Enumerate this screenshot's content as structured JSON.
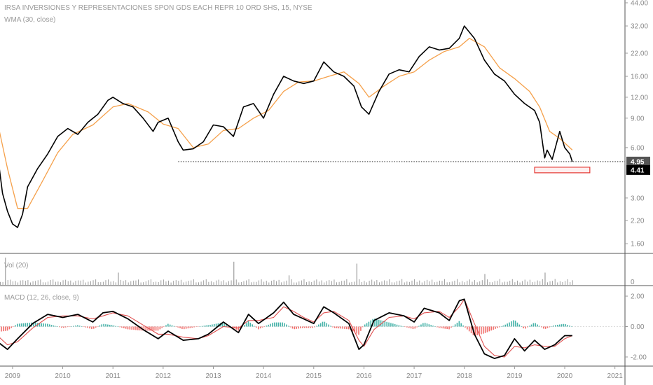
{
  "chart_data": {
    "type": "line",
    "title": "IRSA INVERSIONES Y REPRESENTACIONES SPON GDS EACH REPR 10 ORD SHS, 15, NYSE",
    "indicator_label": "WMA (30, close)",
    "volume_label": "Vol (20)",
    "macd_label": "MACD (12, 26, close, 9)",
    "y_scale": "log",
    "ylim": [
      1.4,
      44
    ],
    "y_ticks": [
      "44.00",
      "32.00",
      "22.00",
      "16.00",
      "12.00",
      "9.00",
      "6.00",
      "3.00",
      "2.20",
      "1.60"
    ],
    "volume_ticks": [
      "0"
    ],
    "macd_ticks": [
      "2.00",
      "0.00",
      "-2.00"
    ],
    "x_ticks": [
      "2009",
      "2010",
      "2011",
      "2012",
      "2013",
      "2014",
      "2015",
      "2016",
      "2017",
      "2018",
      "2019",
      "2020",
      "2021"
    ],
    "last_price": "4.95",
    "low_price": "4.41",
    "colors": {
      "price": "#000000",
      "wma": "#f5a04a",
      "macd": "#000000",
      "signal": "#e05050",
      "hist_up": "#26a69a",
      "hist_down": "#ef5350",
      "volume": "#9e9e9e",
      "highlight_box": "#e53935",
      "last_tag": "#555555",
      "low_tag": "#000000"
    },
    "series": [
      {
        "name": "close",
        "x": [
          2008.7,
          2008.8,
          2008.9,
          2009.0,
          2009.1,
          2009.2,
          2009.3,
          2009.5,
          2009.7,
          2009.9,
          2010.1,
          2010.3,
          2010.5,
          2010.7,
          2010.9,
          2011.0,
          2011.2,
          2011.4,
          2011.6,
          2011.8,
          2011.9,
          2012.1,
          2012.3,
          2012.4,
          2012.6,
          2012.8,
          2013.0,
          2013.2,
          2013.4,
          2013.6,
          2013.8,
          2014.0,
          2014.2,
          2014.4,
          2014.6,
          2014.8,
          2015.0,
          2015.2,
          2015.4,
          2015.6,
          2015.8,
          2015.95,
          2016.1,
          2016.3,
          2016.5,
          2016.7,
          2016.9,
          2017.1,
          2017.3,
          2017.5,
          2017.7,
          2017.9,
          2018.0,
          2018.2,
          2018.4,
          2018.6,
          2018.8,
          2019.0,
          2019.2,
          2019.4,
          2019.5,
          2019.6,
          2019.65,
          2019.75,
          2019.9,
          2020.0,
          2020.1,
          2020.15
        ],
        "values": [
          5.5,
          3.2,
          2.5,
          2.1,
          2.0,
          2.4,
          3.5,
          4.5,
          5.5,
          7.0,
          7.8,
          7.2,
          8.5,
          9.5,
          11.5,
          12.0,
          11.0,
          10.5,
          9.0,
          7.5,
          8.5,
          9.0,
          6.5,
          5.8,
          5.9,
          6.5,
          8.2,
          8.0,
          7.0,
          10.5,
          11.0,
          9.0,
          12.5,
          16.0,
          15.0,
          14.5,
          15.0,
          19.5,
          17.0,
          16.0,
          14.0,
          10.5,
          9.5,
          13.0,
          16.5,
          17.5,
          17.0,
          21.0,
          24.0,
          23.0,
          23.5,
          27.0,
          32.0,
          27.0,
          20.0,
          16.5,
          15.0,
          12.5,
          11.0,
          10.0,
          8.5,
          5.2,
          5.8,
          5.1,
          7.5,
          6.0,
          5.5,
          4.95
        ]
      },
      {
        "name": "WMA (30, close)",
        "x": [
          2008.7,
          2008.9,
          2009.1,
          2009.3,
          2009.6,
          2009.9,
          2010.2,
          2010.6,
          2011.0,
          2011.3,
          2011.7,
          2012.0,
          2012.3,
          2012.6,
          2012.9,
          2013.2,
          2013.5,
          2013.8,
          2014.1,
          2014.4,
          2014.7,
          2015.0,
          2015.3,
          2015.6,
          2015.9,
          2016.1,
          2016.4,
          2016.7,
          2017.0,
          2017.3,
          2017.6,
          2017.9,
          2018.1,
          2018.4,
          2018.7,
          2019.0,
          2019.3,
          2019.5,
          2019.7,
          2019.9,
          2020.1,
          2020.15
        ],
        "values": [
          8.5,
          4.5,
          2.6,
          2.6,
          3.8,
          5.6,
          7.2,
          8.2,
          10.5,
          11.0,
          9.8,
          8.3,
          7.8,
          6.0,
          6.3,
          7.6,
          7.8,
          9.0,
          10.0,
          13.0,
          14.8,
          15.0,
          16.0,
          17.0,
          14.5,
          12.0,
          14.0,
          16.0,
          17.0,
          20.0,
          22.5,
          24.0,
          27.0,
          24.0,
          18.0,
          15.5,
          13.0,
          10.5,
          7.5,
          6.8,
          6.0,
          5.8
        ]
      },
      {
        "name": "MACD",
        "x": [
          2008.7,
          2008.9,
          2009.1,
          2009.4,
          2009.7,
          2010.0,
          2010.3,
          2010.6,
          2010.8,
          2011.0,
          2011.3,
          2011.6,
          2011.9,
          2012.1,
          2012.4,
          2012.7,
          2012.9,
          2013.2,
          2013.5,
          2013.7,
          2013.9,
          2014.2,
          2014.4,
          2014.6,
          2014.8,
          2015.0,
          2015.2,
          2015.4,
          2015.7,
          2015.9,
          2016.0,
          2016.2,
          2016.5,
          2016.8,
          2017.0,
          2017.2,
          2017.5,
          2017.7,
          2017.9,
          2018.0,
          2018.2,
          2018.4,
          2018.6,
          2018.8,
          2019.0,
          2019.2,
          2019.4,
          2019.6,
          2019.8,
          2020.0,
          2020.15
        ],
        "values": [
          -1.0,
          -1.5,
          -0.8,
          0.2,
          0.8,
          0.6,
          0.8,
          0.3,
          0.9,
          1.0,
          0.5,
          -0.2,
          -0.8,
          -0.3,
          -0.9,
          -0.8,
          -0.5,
          0.3,
          -0.4,
          0.8,
          0.2,
          0.9,
          1.6,
          0.8,
          0.5,
          0.2,
          1.3,
          0.9,
          0.2,
          -1.5,
          -1.2,
          0.4,
          0.9,
          0.7,
          0.3,
          1.2,
          0.9,
          0.4,
          1.7,
          1.8,
          -0.5,
          -1.8,
          -2.1,
          -1.9,
          -0.8,
          -1.6,
          -0.9,
          -1.5,
          -1.2,
          -0.6,
          -0.6
        ]
      },
      {
        "name": "Signal",
        "x": [
          2008.7,
          2008.9,
          2009.1,
          2009.4,
          2009.7,
          2010.0,
          2010.3,
          2010.6,
          2010.8,
          2011.0,
          2011.3,
          2011.6,
          2011.9,
          2012.1,
          2012.4,
          2012.7,
          2012.9,
          2013.2,
          2013.5,
          2013.7,
          2013.9,
          2014.2,
          2014.4,
          2014.6,
          2014.8,
          2015.0,
          2015.2,
          2015.4,
          2015.7,
          2015.9,
          2016.0,
          2016.2,
          2016.5,
          2016.8,
          2017.0,
          2017.2,
          2017.5,
          2017.7,
          2017.9,
          2018.0,
          2018.2,
          2018.4,
          2018.6,
          2018.8,
          2019.0,
          2019.2,
          2019.4,
          2019.6,
          2019.8,
          2020.0,
          2020.15
        ],
        "values": [
          -0.6,
          -1.2,
          -1.0,
          -0.1,
          0.6,
          0.7,
          0.7,
          0.5,
          0.7,
          0.9,
          0.7,
          0.1,
          -0.5,
          -0.5,
          -0.7,
          -0.8,
          -0.6,
          0.0,
          -0.1,
          0.4,
          0.4,
          0.6,
          1.3,
          1.0,
          0.6,
          0.3,
          0.9,
          1.0,
          0.4,
          -0.9,
          -1.3,
          -0.2,
          0.6,
          0.7,
          0.5,
          0.9,
          1.0,
          0.6,
          1.3,
          1.8,
          0.2,
          -1.3,
          -1.9,
          -2.0,
          -1.3,
          -1.4,
          -1.2,
          -1.3,
          -1.3,
          -0.8,
          -0.6
        ]
      }
    ],
    "volume_spikes": [
      {
        "x": 2008.85,
        "v": 1.0
      },
      {
        "x": 2013.4,
        "v": 0.85
      },
      {
        "x": 2015.85,
        "v": 0.78
      },
      {
        "x": 2011.1,
        "v": 0.45
      },
      {
        "x": 2014.5,
        "v": 0.35
      },
      {
        "x": 2018.4,
        "v": 0.4
      },
      {
        "x": 2019.6,
        "v": 0.45
      }
    ]
  }
}
